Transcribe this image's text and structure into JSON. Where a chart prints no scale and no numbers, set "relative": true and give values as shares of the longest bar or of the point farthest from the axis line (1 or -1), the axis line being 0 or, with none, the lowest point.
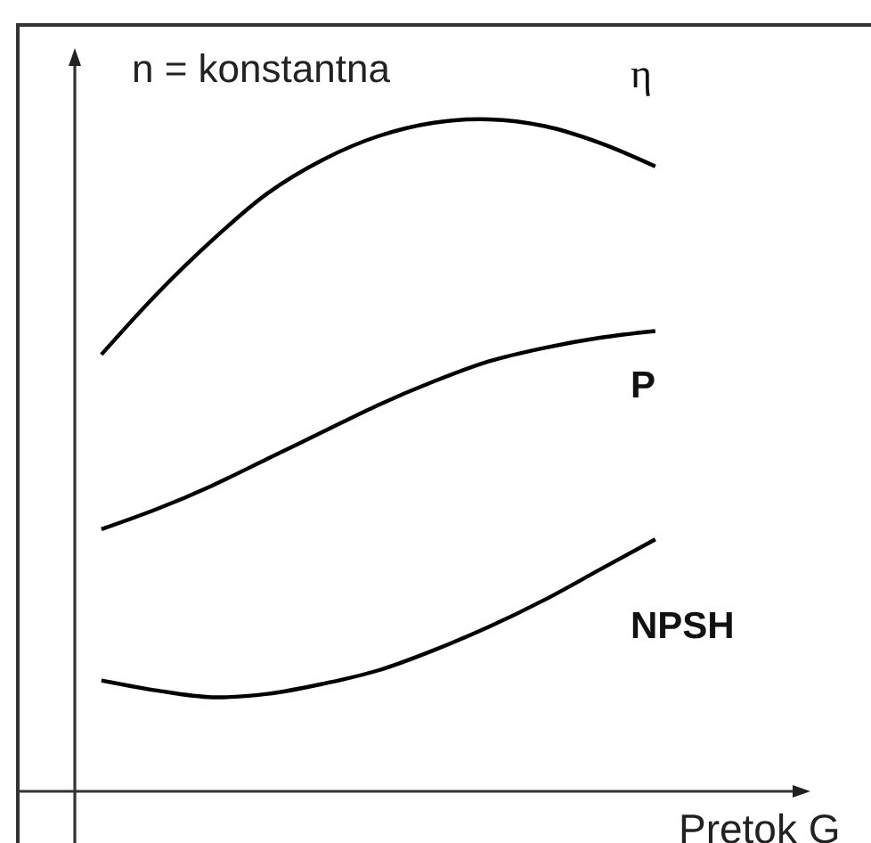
{
  "chart_data": {
    "type": "line",
    "relative": true,
    "categories": [
      null,
      null,
      null,
      null,
      null,
      null,
      null,
      null,
      null,
      null,
      null
    ],
    "xlabel": "Pretok G",
    "annotations": [
      "n = konstantna"
    ],
    "series": [
      {
        "name": "η",
        "color": "#000000",
        "values": [
          0.65,
          0.74,
          0.82,
          0.89,
          0.94,
          0.975,
          0.995,
          1.0,
          0.99,
          0.965,
          0.93
        ]
      },
      {
        "name": "P",
        "color": "#000000",
        "values": [
          0.39,
          0.42,
          0.455,
          0.495,
          0.535,
          0.575,
          0.61,
          0.64,
          0.66,
          0.675,
          0.685
        ]
      },
      {
        "name": "NPSH",
        "color": "#000000",
        "values": [
          0.165,
          0.15,
          0.14,
          0.145,
          0.16,
          0.18,
          0.21,
          0.245,
          0.285,
          0.33,
          0.375
        ]
      }
    ],
    "marker": "none",
    "line_style": "solid",
    "legend": false
  }
}
